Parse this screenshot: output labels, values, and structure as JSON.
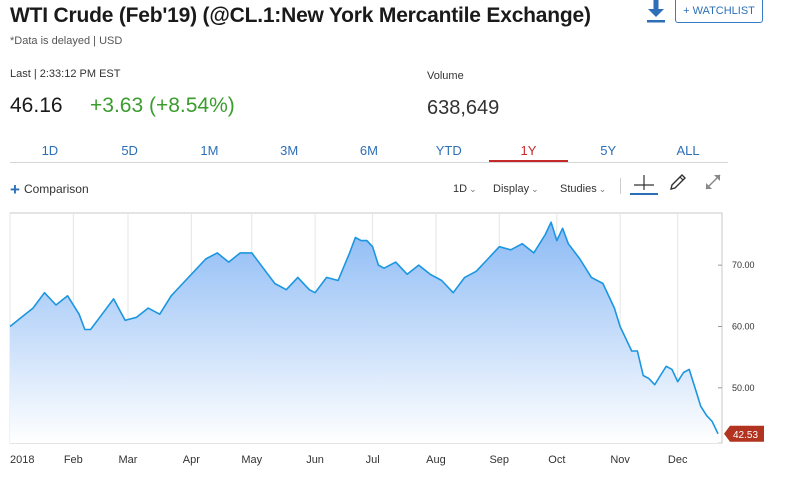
{
  "header": {
    "title": "WTI Crude (Feb'19) (@CL.1:New York Mercantile Exchange)",
    "subtitle": "*Data is delayed | USD",
    "watchlist_label": "+ WATCHLIST",
    "download_icon": "download-icon"
  },
  "quote": {
    "last_label": "Last | 2:33:12 PM EST",
    "price": "46.16",
    "change": "+3.63 (+8.54%)",
    "volume_label": "Volume",
    "volume": "638,649",
    "change_color": "#3a9d2e"
  },
  "tabs": [
    {
      "label": "1D"
    },
    {
      "label": "5D"
    },
    {
      "label": "1M"
    },
    {
      "label": "3M"
    },
    {
      "label": "6M"
    },
    {
      "label": "YTD"
    },
    {
      "label": "1Y"
    },
    {
      "label": "5Y"
    },
    {
      "label": "ALL"
    }
  ],
  "active_tab": "1Y",
  "toolbar": {
    "comparison_label": "Comparison",
    "interval_label": "1D",
    "display_label": "Display",
    "studies_label": "Studies",
    "icons": [
      "crosshair-icon",
      "pencil-icon",
      "expand-icon"
    ]
  },
  "chart_data": {
    "type": "area",
    "title": "",
    "xlabel": "",
    "ylabel": "",
    "ylim": [
      41,
      78.5
    ],
    "y_ticks": [
      "70.00",
      "60.00",
      "50.00"
    ],
    "y_tick_values": [
      70,
      60,
      50
    ],
    "x_ticks": [
      "2018",
      "Feb",
      "Mar",
      "Apr",
      "May",
      "Jun",
      "Jul",
      "Aug",
      "Sep",
      "Oct",
      "Nov",
      "Dec"
    ],
    "x_tick_positions": [
      0,
      22,
      41,
      63,
      84,
      106,
      126,
      148,
      170,
      190,
      212,
      232
    ],
    "last_value_label": "42.53",
    "line_color": "#1b96e0",
    "fill_top": "#8cbaf5",
    "fill_bottom": "#ffffff",
    "grid": "vertical only",
    "series": [
      {
        "x": [
          0,
          4,
          8,
          12,
          16,
          20,
          24,
          26,
          28,
          32,
          36,
          40,
          44,
          48,
          52,
          56,
          60,
          64,
          68,
          72,
          76,
          80,
          84,
          88,
          92,
          96,
          100,
          104,
          106,
          110,
          114,
          118,
          120,
          122,
          124,
          126,
          128,
          130,
          134,
          138,
          142,
          146,
          150,
          154,
          158,
          162,
          166,
          170,
          174,
          178,
          182,
          186,
          188,
          190,
          192,
          194,
          198,
          202,
          206,
          210,
          212,
          214,
          216,
          218,
          220,
          222,
          224,
          226,
          228,
          230,
          232,
          234,
          236,
          238,
          240,
          242,
          244,
          246
        ],
        "y": [
          60,
          61.5,
          63,
          65.5,
          63.5,
          65,
          62,
          59.5,
          59.5,
          62,
          64.5,
          61,
          61.5,
          63,
          62,
          65,
          67,
          69,
          71,
          72,
          70.5,
          72,
          72,
          69.5,
          67,
          66,
          68,
          66,
          65.5,
          68,
          67.5,
          72,
          74.5,
          74,
          74,
          73,
          70,
          69.5,
          70.5,
          68.5,
          70,
          68.5,
          67.5,
          65.5,
          68,
          69,
          71,
          73,
          72.5,
          73.5,
          72,
          75,
          77,
          74,
          76,
          73.5,
          71,
          68,
          67,
          63,
          60,
          58,
          56,
          56,
          52,
          51.5,
          50.5,
          52,
          53.5,
          53,
          51,
          52.5,
          53,
          50,
          47,
          45.5,
          44.5,
          42.5
        ]
      }
    ]
  }
}
